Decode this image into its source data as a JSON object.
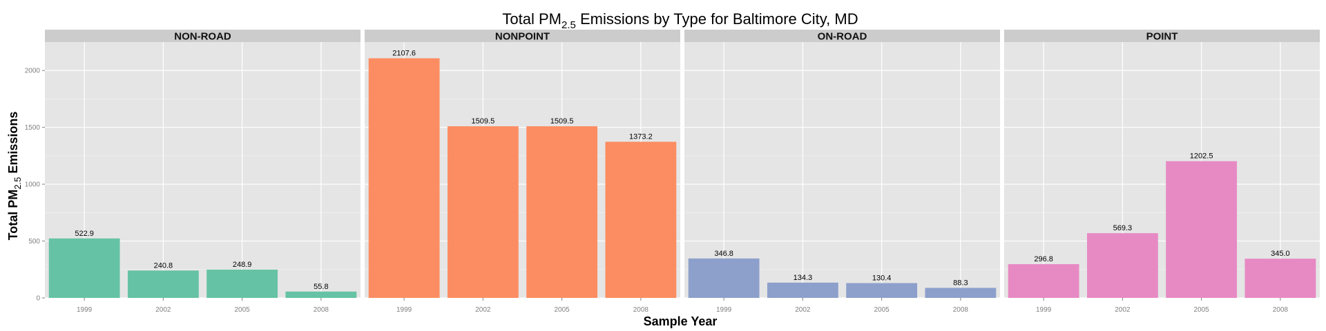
{
  "chart_data": {
    "type": "bar",
    "title": {
      "prefix": "Total PM",
      "subscript": "2.5",
      "suffix": " Emissions by Type for Baltimore City, MD"
    },
    "xlabel": "Sample Year",
    "ylabel": {
      "prefix": "Total PM",
      "subscript": "2.5",
      "suffix": " Emissions"
    },
    "categories": [
      "1999",
      "2002",
      "2005",
      "2008"
    ],
    "ylim": [
      0,
      2250
    ],
    "yticks": [
      0,
      500,
      1000,
      1500,
      2000
    ],
    "grid": true,
    "panels": [
      {
        "name": "NON-ROAD",
        "color": "#66C2A5",
        "values": [
          522.9,
          240.8,
          248.9,
          55.8
        ],
        "labels": [
          "522.9",
          "240.8",
          "248.9",
          "55.8"
        ]
      },
      {
        "name": "NONPOINT",
        "color": "#FC8D62",
        "values": [
          2107.6,
          1509.5,
          1509.5,
          1373.2
        ],
        "labels": [
          "2107.6",
          "1509.5",
          "1509.5",
          "1373.2"
        ]
      },
      {
        "name": "ON-ROAD",
        "color": "#8DA0CB",
        "values": [
          346.8,
          134.3,
          130.4,
          88.3
        ],
        "labels": [
          "346.8",
          "134.3",
          "130.4",
          "88.3"
        ]
      },
      {
        "name": "POINT",
        "color": "#E78AC3",
        "values": [
          296.8,
          569.3,
          1202.5,
          345.0
        ],
        "labels": [
          "296.8",
          "569.3",
          "1202.5",
          "345.0"
        ]
      }
    ]
  }
}
